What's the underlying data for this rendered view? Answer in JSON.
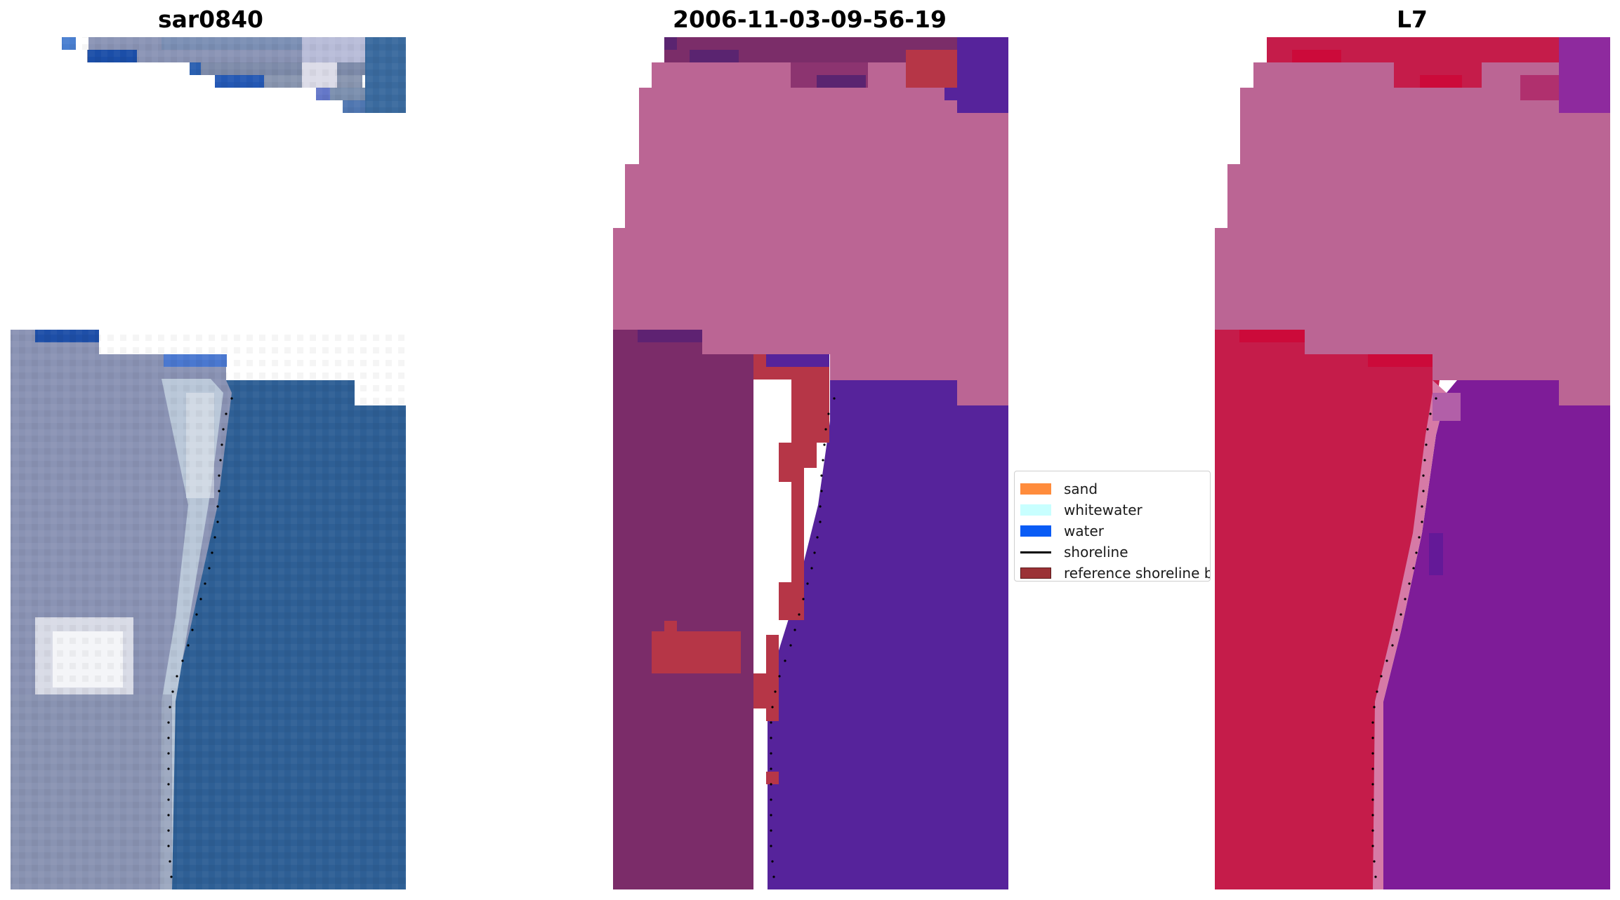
{
  "panels": [
    {
      "title": "sar0840"
    },
    {
      "title": "2006-11-03-09-56-19"
    },
    {
      "title": "L7"
    }
  ],
  "legend": {
    "items": [
      {
        "label": "sand",
        "color": "#ff8c3c",
        "kind": "patch"
      },
      {
        "label": "whitewater",
        "color": "#c8ffff",
        "kind": "patch"
      },
      {
        "label": "water",
        "color": "#0a5cf5",
        "kind": "patch"
      },
      {
        "label": "shoreline",
        "color": "#000000",
        "kind": "line"
      },
      {
        "label": "reference shoreline b",
        "color": "#9b3236",
        "kind": "patch"
      }
    ]
  },
  "colors": {
    "rgb_land": "#8c93b0",
    "rgb_water": "#2d5f93",
    "class_nodata": "#bb6594",
    "class_land": "#7b2c69",
    "class_water": "#56239b",
    "class_buffer": "#b63647",
    "mndwi_land": "#c51c4a",
    "mndwi_water": "#7e1c98",
    "mndwi_nodata": "#bb6594"
  }
}
